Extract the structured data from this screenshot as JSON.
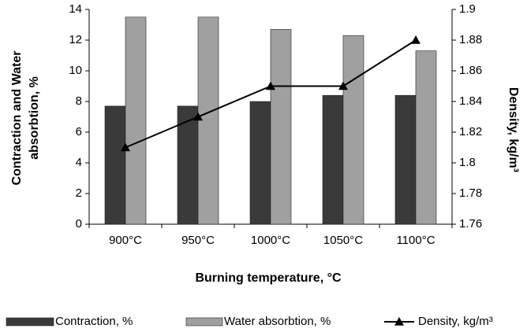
{
  "chart_data": {
    "type": "bar",
    "categories": [
      "900°C",
      "950°C",
      "1000°C",
      "1050°C",
      "1100°C"
    ],
    "series": [
      {
        "name": "Contraction, %",
        "color": "#3a3a3a",
        "values": [
          7.7,
          7.7,
          8.0,
          8.4,
          8.4
        ]
      },
      {
        "name": "Water absorbtion, %",
        "color": "#a0a0a0",
        "values": [
          13.5,
          13.5,
          12.7,
          12.3,
          11.3
        ]
      },
      {
        "name": "Density, kg/m³",
        "type": "line",
        "color": "#000000",
        "axis": "y2",
        "values": [
          1.81,
          1.83,
          1.85,
          1.85,
          1.88
        ]
      }
    ],
    "ylabel": [
      "Contraction and  Water",
      "absorbtion, %"
    ],
    "y2label": "Density,  kg/m³",
    "xlabel": "Burning temperature, °C",
    "ylim": [
      0,
      14
    ],
    "yticks": [
      0,
      2,
      4,
      6,
      8,
      10,
      12,
      14
    ],
    "y2lim": [
      1.76,
      1.9
    ],
    "y2ticks": [
      1.76,
      1.78,
      1.8,
      1.82,
      1.84,
      1.86,
      1.88,
      1.9
    ],
    "legend": "bottom"
  }
}
